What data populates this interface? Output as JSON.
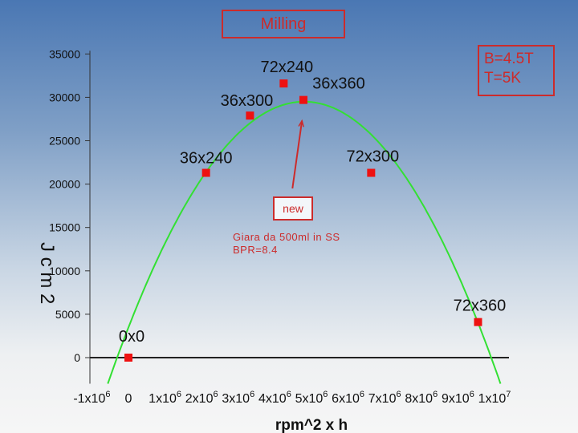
{
  "title_box": "Milling",
  "params_box": {
    "line1": "B=4.5T",
    "line2": "T=5K"
  },
  "new_box": "new",
  "notes": {
    "line1": "Giara da 500ml in SS",
    "line2": "BPR=8.4"
  },
  "colors": {
    "fit_curve": "#33e033",
    "points": "#ee1111",
    "baseline": "#222222",
    "annotation": "#cc2b2b",
    "arrow": "#cc2b2b"
  },
  "chart_data": {
    "type": "scatter",
    "xlabel": "rpm^2 x h",
    "ylabel": "J c m 2",
    "xlim": [
      -1000000,
      10500000
    ],
    "ylim": [
      -3000,
      35000
    ],
    "y_ticks": [
      0,
      5000,
      10000,
      15000,
      20000,
      25000,
      30000,
      35000
    ],
    "x_ticks": [
      {
        "value": -1000000,
        "label": "-1x10",
        "exp": "6"
      },
      {
        "value": 0,
        "label": "0",
        "exp": ""
      },
      {
        "value": 1000000,
        "label": "1x10",
        "exp": "6"
      },
      {
        "value": 2000000,
        "label": "2x10",
        "exp": "6"
      },
      {
        "value": 3000000,
        "label": "3x10",
        "exp": "6"
      },
      {
        "value": 4000000,
        "label": "4x10",
        "exp": "6"
      },
      {
        "value": 5000000,
        "label": "5x10",
        "exp": "6"
      },
      {
        "value": 6000000,
        "label": "6x10",
        "exp": "6"
      },
      {
        "value": 7000000,
        "label": "7x10",
        "exp": "6"
      },
      {
        "value": 8000000,
        "label": "8x10",
        "exp": "6"
      },
      {
        "value": 9000000,
        "label": "9x10",
        "exp": "6"
      },
      {
        "value": 10000000,
        "label": "1x10",
        "exp": "7"
      }
    ],
    "points": [
      {
        "label": "0x0",
        "x": 0,
        "y": 0
      },
      {
        "label": "36x240",
        "x": 2120000,
        "y": 21300
      },
      {
        "label": "36x300",
        "x": 3320000,
        "y": 27900
      },
      {
        "label": "72x240",
        "x": 4240000,
        "y": 31600
      },
      {
        "label": "36x360",
        "x": 4780000,
        "y": 29700
      },
      {
        "label": "72x300",
        "x": 6630000,
        "y": 21300
      },
      {
        "label": "72x360",
        "x": 9550000,
        "y": 4100
      }
    ],
    "fit": {
      "type": "quadratic",
      "vertex_x": 4800000,
      "vertex_y": 29500,
      "roots": [
        -310000,
        9940000
      ]
    },
    "baseline_y": 0,
    "arrow": {
      "from": [
        4480000,
        19500
      ],
      "to": [
        4740000,
        27300
      ]
    }
  }
}
